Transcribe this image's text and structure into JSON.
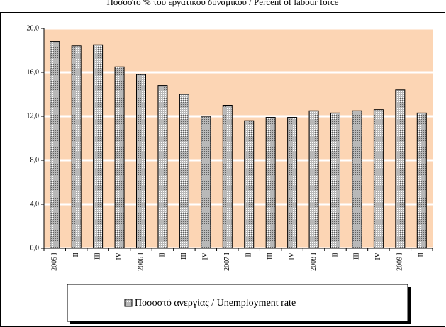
{
  "chart_data": {
    "type": "bar",
    "title": "Ποσοστό % του εργατικού δυναμικού / Percent of labour force",
    "categories": [
      "2005 I",
      "II",
      "III",
      "IV",
      "2006 I",
      "II",
      "III",
      "IV",
      "2007 I",
      "II",
      "III",
      "IV",
      "2008 I",
      "II",
      "III",
      "IV",
      "2009 I",
      "II"
    ],
    "series": [
      {
        "name": "Ποσοστό ανεργίας / Unemployment rate",
        "color": "#b8b8b8",
        "values": [
          18.8,
          18.4,
          18.5,
          16.5,
          15.8,
          14.8,
          14.0,
          12.0,
          13.0,
          11.6,
          11.9,
          11.9,
          12.5,
          12.3,
          12.5,
          12.6,
          14.4,
          12.3
        ]
      }
    ],
    "ylim": [
      0,
      20
    ],
    "yticks": [
      {
        "value": 0,
        "label": "0,0"
      },
      {
        "value": 4,
        "label": "4,0"
      },
      {
        "value": 8,
        "label": "8,0"
      },
      {
        "value": 12,
        "label": "12,0"
      },
      {
        "value": 16,
        "label": "16,0"
      },
      {
        "value": 20,
        "label": "20,0"
      }
    ],
    "grid": true,
    "plot_background": "#fcd5b4"
  }
}
